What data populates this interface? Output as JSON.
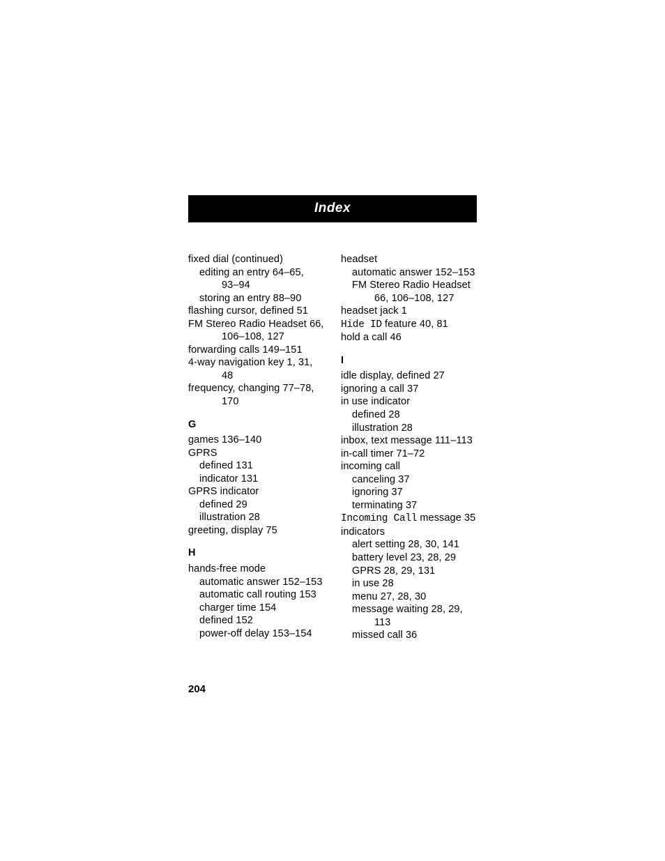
{
  "banner": {
    "title": "Index"
  },
  "page_number": "204",
  "left": {
    "before_G": [
      {
        "lvl": 1,
        "t": "fixed dial (continued)"
      },
      {
        "lvl": 2,
        "t": "editing an entry  64–65,"
      },
      {
        "lvl": 3,
        "t": "93–94"
      },
      {
        "lvl": 2,
        "t": "storing an entry  88–90"
      },
      {
        "lvl": 1,
        "t": "flashing cursor, defined  51"
      },
      {
        "lvl": 1,
        "t": "FM Stereo Radio Headset  66,"
      },
      {
        "lvl": 3,
        "t": "106–108, 127"
      },
      {
        "lvl": 1,
        "t": "forwarding calls  149–151"
      },
      {
        "lvl": 1,
        "t": "4-way navigation key  1, 31,"
      },
      {
        "lvl": 3,
        "t": "48"
      },
      {
        "lvl": 1,
        "t": "frequency, changing  77–78,"
      },
      {
        "lvl": 3,
        "t": "170"
      }
    ],
    "G_head": "G",
    "G": [
      {
        "lvl": 1,
        "t": "games  136–140"
      },
      {
        "lvl": 1,
        "t": "GPRS"
      },
      {
        "lvl": 2,
        "t": "defined  131"
      },
      {
        "lvl": 2,
        "t": "indicator  131"
      },
      {
        "lvl": 1,
        "t": "GPRS indicator"
      },
      {
        "lvl": 2,
        "t": "defined  29"
      },
      {
        "lvl": 2,
        "t": "illustration  28"
      },
      {
        "lvl": 1,
        "t": "greeting, display  75"
      }
    ],
    "H_head": "H",
    "H": [
      {
        "lvl": 1,
        "t": "hands-free mode"
      },
      {
        "lvl": 2,
        "t": "automatic answer  152–153"
      },
      {
        "lvl": 2,
        "t": "automatic call routing  153"
      },
      {
        "lvl": 2,
        "t": "charger time  154"
      },
      {
        "lvl": 2,
        "t": "defined  152"
      },
      {
        "lvl": 2,
        "t": "power-off delay  153–154"
      }
    ]
  },
  "right": {
    "top": [
      {
        "lvl": 1,
        "t": "headset"
      },
      {
        "lvl": 2,
        "t": "automatic answer  152–153"
      },
      {
        "lvl": 2,
        "t": "FM Stereo Radio Headset"
      },
      {
        "lvl": 3,
        "t": "66, 106–108, 127"
      },
      {
        "lvl": 1,
        "t": "headset jack  1"
      },
      {
        "lvl": 1,
        "mono_prefix": "Hide ID",
        "t": " feature  40, 81"
      },
      {
        "lvl": 1,
        "t": "hold a call  46"
      }
    ],
    "I_head": "I",
    "I": [
      {
        "lvl": 1,
        "t": "idle display, defined  27"
      },
      {
        "lvl": 1,
        "t": "ignoring a call  37"
      },
      {
        "lvl": 1,
        "t": "in use indicator"
      },
      {
        "lvl": 2,
        "t": "defined  28"
      },
      {
        "lvl": 2,
        "t": "illustration  28"
      },
      {
        "lvl": 1,
        "t": "inbox, text message  111–113"
      },
      {
        "lvl": 1,
        "t": "in-call timer  71–72"
      },
      {
        "lvl": 1,
        "t": "incoming call"
      },
      {
        "lvl": 2,
        "t": "canceling  37"
      },
      {
        "lvl": 2,
        "t": "ignoring  37"
      },
      {
        "lvl": 2,
        "t": "terminating  37"
      },
      {
        "lvl": 1,
        "mono_prefix": "Incoming Call",
        "t": " message  35"
      },
      {
        "lvl": 1,
        "t": "indicators"
      },
      {
        "lvl": 2,
        "t": "alert setting  28, 30, 141"
      },
      {
        "lvl": 2,
        "t": "battery level  23, 28, 29"
      },
      {
        "lvl": 2,
        "t": "GPRS  28, 29, 131"
      },
      {
        "lvl": 2,
        "t": "in use  28"
      },
      {
        "lvl": 2,
        "t": "menu  27, 28, 30"
      },
      {
        "lvl": 2,
        "t": "message waiting  28, 29,"
      },
      {
        "lvl": 3,
        "t": "113"
      },
      {
        "lvl": 2,
        "t": "missed call  36"
      }
    ]
  }
}
